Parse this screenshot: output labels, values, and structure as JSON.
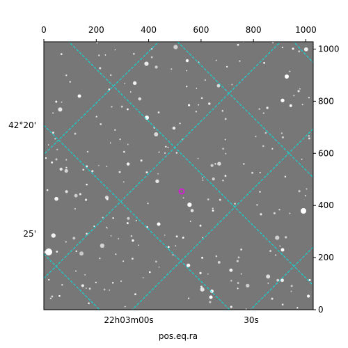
{
  "chart_data": {
    "type": "image",
    "xlabel": "pos.eq.ra",
    "xlim": [
      0,
      1028
    ],
    "xticks": [
      0,
      200,
      400,
      600,
      800,
      1000
    ],
    "ylim": [
      0,
      1028
    ],
    "yticks": [
      0,
      200,
      400,
      600,
      800,
      1000
    ],
    "ra_ticks": [
      "22h03m00s",
      "30s"
    ],
    "dec_ticks": [
      "42°20'",
      "25'"
    ],
    "grid_color": "#00e5e5"
  }
}
